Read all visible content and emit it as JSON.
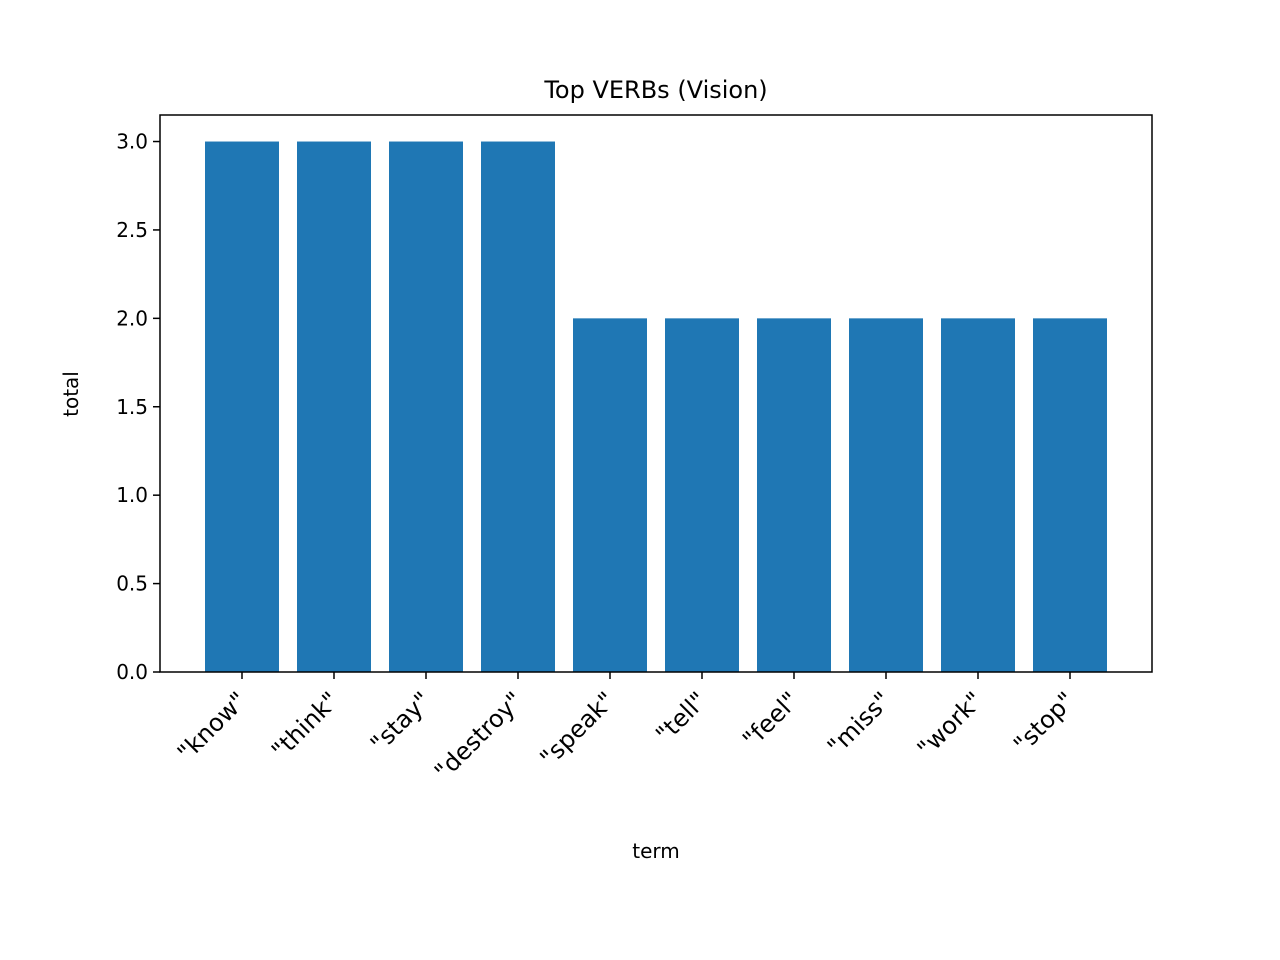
{
  "chart_data": {
    "type": "bar",
    "title": "Top VERBs (Vision)",
    "xlabel": "term",
    "ylabel": "total",
    "categories": [
      "\"know\"",
      "\"think\"",
      "\"stay\"",
      "\"destroy\"",
      "\"speak\"",
      "\"tell\"",
      "\"feel\"",
      "\"miss\"",
      "\"work\"",
      "\"stop\""
    ],
    "values": [
      3,
      3,
      3,
      3,
      2,
      2,
      2,
      2,
      2,
      2
    ],
    "ylim": [
      0,
      3.15
    ],
    "yticks": [
      "0.0",
      "0.5",
      "1.0",
      "1.5",
      "2.0",
      "2.5",
      "3.0"
    ],
    "bar_color": "#1f77b4",
    "grid": false,
    "legend": "none"
  }
}
